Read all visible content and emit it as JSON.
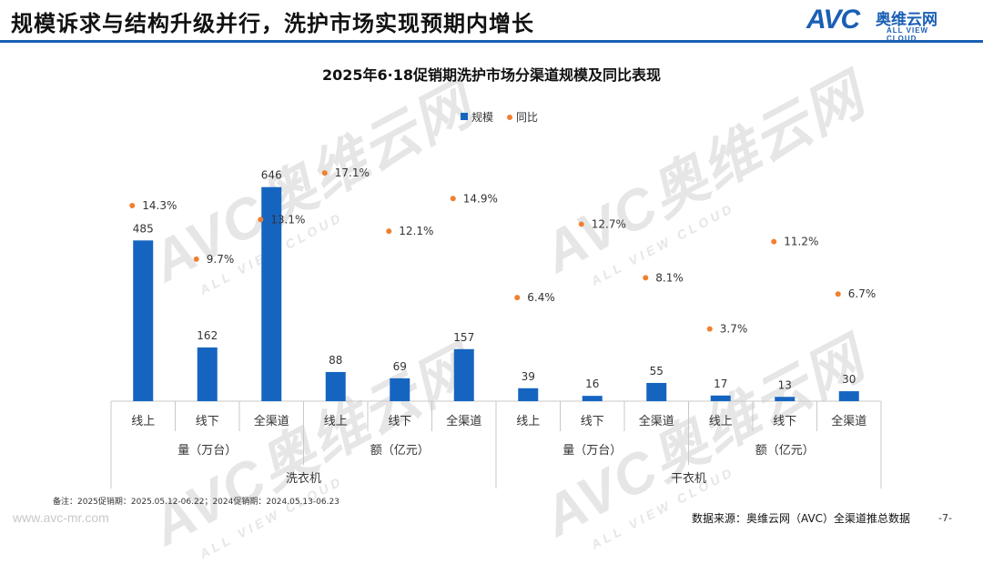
{
  "header": {
    "title": "规模诉求与结构升级并行，洗护市场实现预期内增长",
    "logo_mark": "AVC",
    "logo_cn": "奥维云网",
    "logo_en": "ALL VIEW CLOUD"
  },
  "watermark": {
    "main": "AVC奥维云网",
    "sub": "ALL VIEW CLOUD"
  },
  "chart_data": {
    "type": "bar",
    "title": "2025年6·18促销期洗护市场分渠道规模及同比表现",
    "legend": {
      "position": "top",
      "items": [
        {
          "name": "规模",
          "marker": "square"
        },
        {
          "name": "同比",
          "marker": "dot"
        }
      ]
    },
    "categories": [
      "线上",
      "线下",
      "全渠道",
      "线上",
      "线下",
      "全渠道",
      "线上",
      "线下",
      "全渠道",
      "线上",
      "线下",
      "全渠道"
    ],
    "groups_level2": [
      {
        "label": "量（万台）",
        "span": 3
      },
      {
        "label": "额（亿元）",
        "span": 3
      },
      {
        "label": "量（万台）",
        "span": 3
      },
      {
        "label": "额（亿元）",
        "span": 3
      }
    ],
    "groups_level1": [
      {
        "label": "洗衣机",
        "span": 6
      },
      {
        "label": "干衣机",
        "span": 6
      }
    ],
    "series": [
      {
        "name": "规模",
        "kind": "bar",
        "color": "#1565c0",
        "values": [
          485,
          162,
          646,
          88,
          69,
          157,
          39,
          16,
          55,
          17,
          13,
          30
        ],
        "labels": [
          "485",
          "162",
          "646",
          "88",
          "69",
          "157",
          "39",
          "16",
          "55",
          "17",
          "13",
          "30"
        ]
      },
      {
        "name": "同比",
        "kind": "dot",
        "color": "#f08030",
        "values": [
          14.3,
          9.7,
          13.1,
          17.1,
          12.1,
          14.9,
          6.4,
          12.7,
          8.1,
          3.7,
          11.2,
          6.7
        ],
        "labels": [
          "14.3%",
          "9.7%",
          "13.1%",
          "17.1%",
          "12.1%",
          "14.9%",
          "6.4%",
          "12.7%",
          "8.1%",
          "3.7%",
          "11.2%",
          "6.7%"
        ]
      }
    ],
    "bar_axis_max": 700,
    "dot_axis_range": [
      0,
      20
    ],
    "grid": false
  },
  "footer": {
    "note": "备注：2025促销期：2025.05.12-06.22；2024促销期：2024.05.13-06.23",
    "website": "www.avc-mr.com",
    "source": "数据来源：奥维云网（AVC）全渠道推总数据",
    "page": "-7-"
  }
}
